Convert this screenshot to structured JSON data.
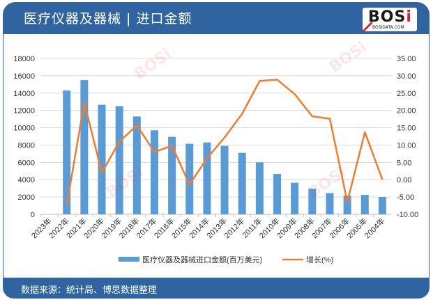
{
  "header": {
    "title": "医疗仪器及器械 | 进口金额",
    "logo_text_main": "BOS",
    "logo_text_i": "i",
    "logo_sub": "BOSIDATA.COM"
  },
  "footer": {
    "source": "数据来源：统计局、博思数据整理"
  },
  "colors": {
    "frame": "#2f64a0",
    "bar": "#5b9bd5",
    "line": "#ed7d31",
    "grid": "#d9d9d9"
  },
  "chart_data": {
    "type": "bar+line",
    "title": "医疗仪器及器械 | 进口金额",
    "categories": [
      "2023年",
      "2022年",
      "2021年",
      "2020年",
      "2019年",
      "2018年",
      "2017年",
      "2016年",
      "2015年",
      "2014年",
      "2013年",
      "2012年",
      "2011年",
      "2010年",
      "2009年",
      "2008年",
      "2007年",
      "2006年",
      "2005年",
      "2004年"
    ],
    "series": [
      {
        "name": "医疗仪器及器械进口金额(百万美元)",
        "type": "bar",
        "axis": "left",
        "values": [
          null,
          14300,
          15500,
          12650,
          12500,
          11300,
          9700,
          8950,
          8150,
          8300,
          7900,
          7100,
          6000,
          4650,
          3650,
          2950,
          2450,
          2150,
          2250,
          2000
        ]
      },
      {
        "name": "增长(%)",
        "type": "line",
        "axis": "right",
        "values": [
          null,
          -7.4,
          22.3,
          2.0,
          11.0,
          15.7,
          8.0,
          9.8,
          -1.4,
          6.2,
          12.2,
          19.0,
          28.5,
          28.9,
          24.7,
          18.3,
          17.6,
          -6.4,
          13.7,
          0.0
        ]
      }
    ],
    "left_axis": {
      "min": 0,
      "max": 18000,
      "step": 2000,
      "ticks": [
        "0",
        "2000",
        "4000",
        "6000",
        "8000",
        "10000",
        "12000",
        "14000",
        "16000",
        "18000"
      ]
    },
    "right_axis": {
      "min": -10,
      "max": 35,
      "step": 5,
      "ticks": [
        "-10.00",
        "-5.00",
        "0.00",
        "5.00",
        "10.00",
        "15.00",
        "20.00",
        "25.00",
        "30.00",
        "35.00"
      ]
    },
    "grid": true,
    "legend_position": "bottom",
    "legend": [
      "医疗仪器及器械进口金额(百万美元)",
      "增长(%)"
    ]
  }
}
